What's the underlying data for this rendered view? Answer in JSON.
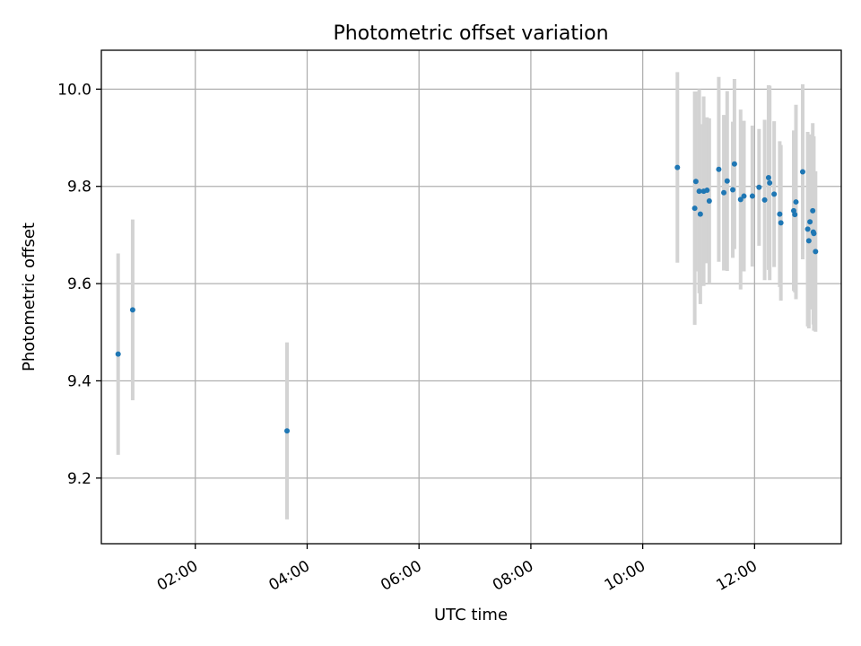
{
  "chart_data": {
    "type": "scatter",
    "title": "Photometric offset variation",
    "xlabel": "UTC time",
    "ylabel": "Photometric offset",
    "x_unit": "hours",
    "xlim": [
      0.32,
      13.55
    ],
    "ylim": [
      9.065,
      10.08
    ],
    "x_ticks": [
      {
        "value": 2,
        "label": "02:00"
      },
      {
        "value": 4,
        "label": "04:00"
      },
      {
        "value": 6,
        "label": "06:00"
      },
      {
        "value": 8,
        "label": "08:00"
      },
      {
        "value": 10,
        "label": "10:00"
      },
      {
        "value": 12,
        "label": "12:00"
      }
    ],
    "y_ticks": [
      {
        "value": 9.2,
        "label": "9.2"
      },
      {
        "value": 9.4,
        "label": "9.4"
      },
      {
        "value": 9.6,
        "label": "9.6"
      },
      {
        "value": 9.8,
        "label": "9.8"
      },
      {
        "value": 10.0,
        "label": "10.0"
      }
    ],
    "grid": true,
    "marker_color": "#1f77b4",
    "errorbar_color": "#d3d3d3",
    "points": [
      {
        "x": 0.62,
        "y": 9.455,
        "err": 0.207
      },
      {
        "x": 0.88,
        "y": 9.546,
        "err": 0.186
      },
      {
        "x": 3.64,
        "y": 9.297,
        "err": 0.182
      },
      {
        "x": 10.62,
        "y": 9.839,
        "err": 0.196
      },
      {
        "x": 10.93,
        "y": 9.755,
        "err": 0.24
      },
      {
        "x": 10.95,
        "y": 9.81,
        "err": 0.185
      },
      {
        "x": 11.01,
        "y": 9.79,
        "err": 0.21
      },
      {
        "x": 11.03,
        "y": 9.743,
        "err": 0.185
      },
      {
        "x": 11.09,
        "y": 9.79,
        "err": 0.195
      },
      {
        "x": 11.15,
        "y": 9.792,
        "err": 0.15
      },
      {
        "x": 11.19,
        "y": 9.77,
        "err": 0.17
      },
      {
        "x": 11.36,
        "y": 9.835,
        "err": 0.19
      },
      {
        "x": 11.45,
        "y": 9.787,
        "err": 0.16
      },
      {
        "x": 11.51,
        "y": 9.811,
        "err": 0.185
      },
      {
        "x": 11.61,
        "y": 9.793,
        "err": 0.14
      },
      {
        "x": 11.64,
        "y": 9.846,
        "err": 0.175
      },
      {
        "x": 11.75,
        "y": 9.773,
        "err": 0.185
      },
      {
        "x": 11.81,
        "y": 9.78,
        "err": 0.155
      },
      {
        "x": 11.96,
        "y": 9.78,
        "err": 0.145
      },
      {
        "x": 12.08,
        "y": 9.798,
        "err": 0.12
      },
      {
        "x": 12.18,
        "y": 9.772,
        "err": 0.165
      },
      {
        "x": 12.25,
        "y": 9.818,
        "err": 0.19
      },
      {
        "x": 12.27,
        "y": 9.807,
        "err": 0.2
      },
      {
        "x": 12.35,
        "y": 9.784,
        "err": 0.15
      },
      {
        "x": 12.45,
        "y": 9.743,
        "err": 0.15
      },
      {
        "x": 12.47,
        "y": 9.725,
        "err": 0.16
      },
      {
        "x": 12.7,
        "y": 9.75,
        "err": 0.165
      },
      {
        "x": 12.72,
        "y": 9.742,
        "err": 0.16
      },
      {
        "x": 12.74,
        "y": 9.768,
        "err": 0.2
      },
      {
        "x": 12.86,
        "y": 9.83,
        "err": 0.18
      },
      {
        "x": 12.95,
        "y": 9.712,
        "err": 0.2
      },
      {
        "x": 12.97,
        "y": 9.688,
        "err": 0.18
      },
      {
        "x": 12.99,
        "y": 9.727,
        "err": 0.18
      },
      {
        "x": 13.04,
        "y": 9.75,
        "err": 0.18
      },
      {
        "x": 13.05,
        "y": 9.706,
        "err": 0.19
      },
      {
        "x": 13.06,
        "y": 9.703,
        "err": 0.2
      },
      {
        "x": 13.09,
        "y": 9.666,
        "err": 0.165
      }
    ]
  }
}
